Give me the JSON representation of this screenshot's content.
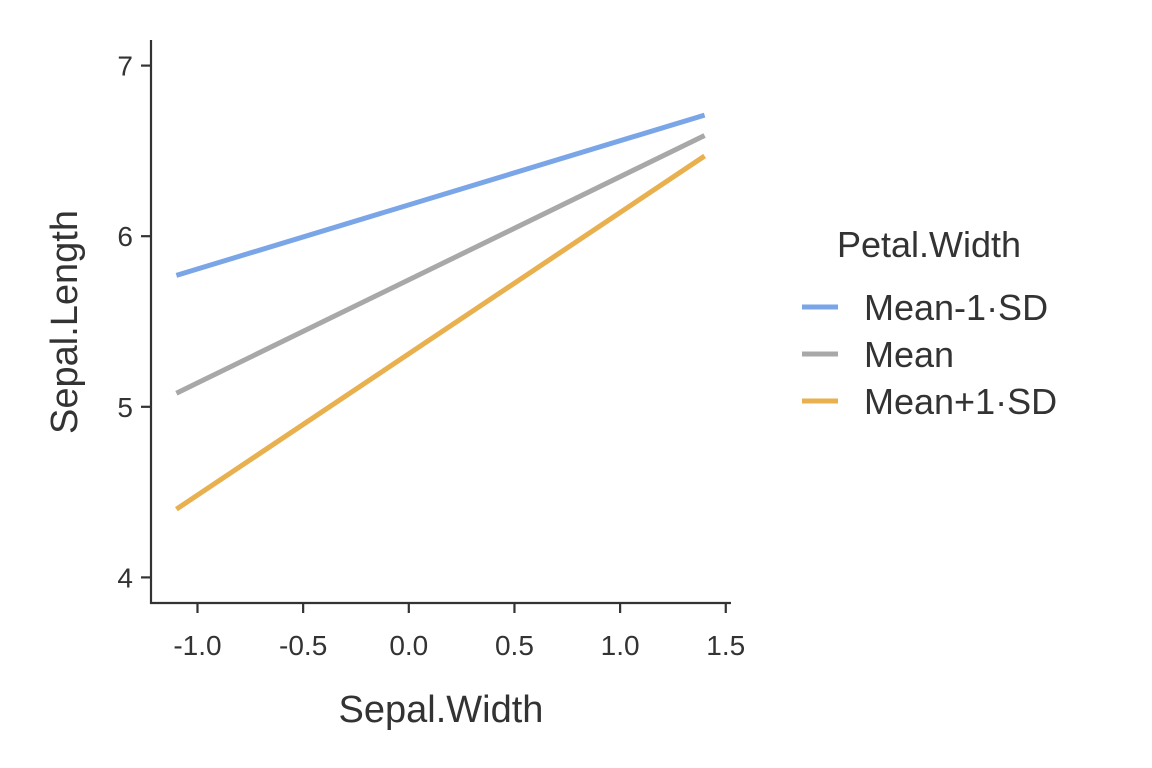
{
  "chart_data": {
    "type": "line",
    "xlabel": "Sepal.Width",
    "ylabel": "Sepal.Length",
    "xlim": [
      -1.22,
      1.52
    ],
    "ylim": [
      3.85,
      7.15
    ],
    "x_ticks": [
      -1.0,
      -0.5,
      0.0,
      0.5,
      1.0,
      1.5
    ],
    "x_tick_labels": [
      "-1.0",
      "-0.5",
      "0.0",
      "0.5",
      "1.0",
      "1.5"
    ],
    "y_ticks": [
      4,
      5,
      6,
      7
    ],
    "y_tick_labels": [
      "4",
      "5",
      "6",
      "7"
    ],
    "grid": false,
    "legend": {
      "title": "Petal.Width",
      "position": "right"
    },
    "series": [
      {
        "name": "Mean-1·SD",
        "color": "#7AA6E8",
        "x": [
          -1.1,
          1.4
        ],
        "y": [
          5.77,
          6.71
        ]
      },
      {
        "name": "Mean",
        "color": "#A8A8A8",
        "x": [
          -1.1,
          1.4
        ],
        "y": [
          5.08,
          6.59
        ]
      },
      {
        "name": "Mean+1·SD",
        "color": "#E8B04E",
        "x": [
          -1.1,
          1.4
        ],
        "y": [
          4.4,
          6.47
        ]
      }
    ]
  }
}
